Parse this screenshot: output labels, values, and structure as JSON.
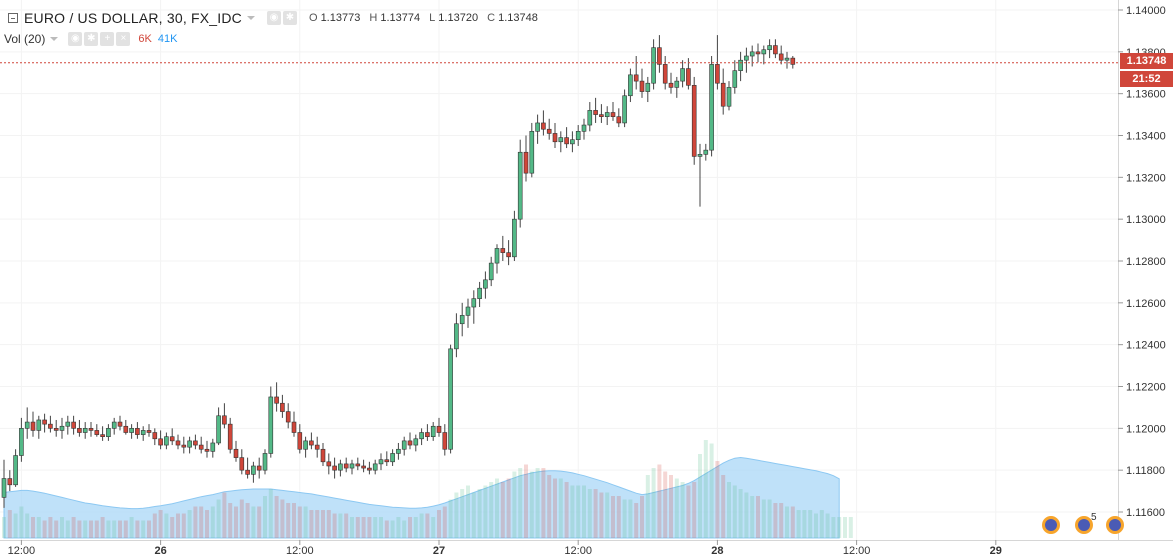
{
  "header": {
    "title": "EURO / US DOLLAR, 30, FX_IDC",
    "ohlc": {
      "o_label": "O",
      "o_value": "1.13773",
      "h_label": "H",
      "h_value": "1.13774",
      "l_label": "L",
      "l_value": "1.13720",
      "c_label": "C",
      "c_value": "1.13748"
    }
  },
  "volume_indicator": {
    "name": "Vol (20)",
    "value_a": "6K",
    "value_b": "41K"
  },
  "price_axis": {
    "ticks": [
      "1.14000",
      "1.13800",
      "1.13600",
      "1.13400",
      "1.13200",
      "1.13000",
      "1.12800",
      "1.12600",
      "1.12400",
      "1.12200",
      "1.12000",
      "1.11800",
      "1.11600"
    ],
    "last_price": "1.13748",
    "countdown": "21:52"
  },
  "time_axis": {
    "ticks": [
      "12:00",
      "26",
      "12:00",
      "27",
      "12:00",
      "28",
      "12:00",
      "29"
    ]
  },
  "badges": {
    "count": "5"
  },
  "colors": {
    "up": "#53b987",
    "down": "#d0463a",
    "volume_ma": "#a9d7f7",
    "last_line": "#d0463a"
  },
  "chart_data": {
    "type": "candlestick",
    "symbol": "EURO / US DOLLAR",
    "interval": "30",
    "y_range": [
      1.115,
      1.141
    ],
    "x_ticks": [
      {
        "label": "12:00",
        "index": 3
      },
      {
        "label": "26",
        "index": 27
      },
      {
        "label": "12:00",
        "index": 51
      },
      {
        "label": "27",
        "index": 75
      },
      {
        "label": "12:00",
        "index": 99
      },
      {
        "label": "28",
        "index": 123
      },
      {
        "label": "12:00",
        "index": 147
      },
      {
        "label": "29",
        "index": 171
      }
    ],
    "candles": [
      [
        1.1167,
        1.1185,
        1.1162,
        1.1176
      ],
      [
        1.1176,
        1.118,
        1.117,
        1.1173
      ],
      [
        1.1173,
        1.119,
        1.1172,
        1.1187
      ],
      [
        1.1187,
        1.1205,
        1.1184,
        1.12
      ],
      [
        1.12,
        1.121,
        1.1195,
        1.1203
      ],
      [
        1.1203,
        1.1208,
        1.1196,
        1.1199
      ],
      [
        1.1199,
        1.1206,
        1.1195,
        1.1204
      ],
      [
        1.1204,
        1.1207,
        1.1198,
        1.1202
      ],
      [
        1.1202,
        1.1206,
        1.1198,
        1.12
      ],
      [
        1.12,
        1.1204,
        1.1196,
        1.1199
      ],
      [
        1.1199,
        1.1205,
        1.1195,
        1.1201
      ],
      [
        1.1201,
        1.1206,
        1.1197,
        1.1203
      ],
      [
        1.1203,
        1.1206,
        1.1197,
        1.12
      ],
      [
        1.12,
        1.1204,
        1.1196,
        1.1198
      ],
      [
        1.1198,
        1.1203,
        1.1195,
        1.12
      ],
      [
        1.12,
        1.1203,
        1.1196,
        1.1199
      ],
      [
        1.1199,
        1.1202,
        1.1196,
        1.1197
      ],
      [
        1.1197,
        1.1201,
        1.1194,
        1.1196
      ],
      [
        1.1196,
        1.1202,
        1.1194,
        1.12
      ],
      [
        1.12,
        1.1205,
        1.1197,
        1.1203
      ],
      [
        1.1203,
        1.1206,
        1.1199,
        1.1201
      ],
      [
        1.1201,
        1.1204,
        1.1197,
        1.1198
      ],
      [
        1.1198,
        1.1202,
        1.1195,
        1.12
      ],
      [
        1.12,
        1.1203,
        1.1195,
        1.1197
      ],
      [
        1.1197,
        1.1201,
        1.1194,
        1.1199
      ],
      [
        1.1199,
        1.1202,
        1.1196,
        1.1198
      ],
      [
        1.1198,
        1.12,
        1.1192,
        1.1195
      ],
      [
        1.1195,
        1.1199,
        1.119,
        1.1192
      ],
      [
        1.1192,
        1.1198,
        1.119,
        1.1196
      ],
      [
        1.1196,
        1.12,
        1.1192,
        1.1194
      ],
      [
        1.1194,
        1.1197,
        1.119,
        1.1192
      ],
      [
        1.1192,
        1.1196,
        1.1188,
        1.1191
      ],
      [
        1.1191,
        1.1196,
        1.1188,
        1.1194
      ],
      [
        1.1194,
        1.1197,
        1.119,
        1.1192
      ],
      [
        1.1192,
        1.1196,
        1.1188,
        1.119
      ],
      [
        1.119,
        1.1194,
        1.1186,
        1.1189
      ],
      [
        1.1189,
        1.1195,
        1.1186,
        1.1193
      ],
      [
        1.1193,
        1.121,
        1.1192,
        1.1206
      ],
      [
        1.1206,
        1.1212,
        1.12,
        1.1202
      ],
      [
        1.1202,
        1.1205,
        1.1188,
        1.119
      ],
      [
        1.119,
        1.1194,
        1.1184,
        1.1186
      ],
      [
        1.1186,
        1.119,
        1.1178,
        1.118
      ],
      [
        1.118,
        1.1186,
        1.1176,
        1.1178
      ],
      [
        1.1178,
        1.1184,
        1.1174,
        1.1182
      ],
      [
        1.1182,
        1.1186,
        1.1176,
        1.118
      ],
      [
        1.118,
        1.119,
        1.1178,
        1.1188
      ],
      [
        1.1188,
        1.122,
        1.1186,
        1.1215
      ],
      [
        1.1215,
        1.1222,
        1.1208,
        1.1212
      ],
      [
        1.1212,
        1.1216,
        1.1205,
        1.1208
      ],
      [
        1.1208,
        1.1212,
        1.12,
        1.1203
      ],
      [
        1.1203,
        1.1208,
        1.1196,
        1.1198
      ],
      [
        1.1198,
        1.1202,
        1.1188,
        1.119
      ],
      [
        1.119,
        1.1196,
        1.1186,
        1.1194
      ],
      [
        1.1194,
        1.1198,
        1.119,
        1.1192
      ],
      [
        1.1192,
        1.1196,
        1.1186,
        1.119
      ],
      [
        1.119,
        1.1193,
        1.1182,
        1.1184
      ],
      [
        1.1184,
        1.1188,
        1.1178,
        1.1182
      ],
      [
        1.1182,
        1.1186,
        1.1176,
        1.118
      ],
      [
        1.118,
        1.1185,
        1.1177,
        1.1183
      ],
      [
        1.1183,
        1.1186,
        1.1179,
        1.1181
      ],
      [
        1.1181,
        1.1185,
        1.1178,
        1.1183
      ],
      [
        1.1183,
        1.1186,
        1.118,
        1.1182
      ],
      [
        1.1182,
        1.1185,
        1.1179,
        1.1181
      ],
      [
        1.1181,
        1.1184,
        1.1178,
        1.118
      ],
      [
        1.118,
        1.1185,
        1.1178,
        1.1183
      ],
      [
        1.1183,
        1.1188,
        1.118,
        1.1185
      ],
      [
        1.1185,
        1.1189,
        1.1182,
        1.1184
      ],
      [
        1.1184,
        1.119,
        1.1182,
        1.1188
      ],
      [
        1.1188,
        1.1193,
        1.1185,
        1.119
      ],
      [
        1.119,
        1.1196,
        1.1187,
        1.1194
      ],
      [
        1.1194,
        1.1198,
        1.119,
        1.1192
      ],
      [
        1.1192,
        1.1197,
        1.1189,
        1.1195
      ],
      [
        1.1195,
        1.12,
        1.1192,
        1.1198
      ],
      [
        1.1198,
        1.1202,
        1.1194,
        1.1196
      ],
      [
        1.1196,
        1.1203,
        1.1194,
        1.1201
      ],
      [
        1.1201,
        1.1205,
        1.1196,
        1.1198
      ],
      [
        1.1198,
        1.1202,
        1.1187,
        1.119
      ],
      [
        1.119,
        1.124,
        1.1188,
        1.1238
      ],
      [
        1.1238,
        1.1255,
        1.1234,
        1.125
      ],
      [
        1.125,
        1.126,
        1.1244,
        1.1254
      ],
      [
        1.1254,
        1.1262,
        1.1248,
        1.1258
      ],
      [
        1.1258,
        1.1266,
        1.125,
        1.1262
      ],
      [
        1.1262,
        1.127,
        1.1258,
        1.1267
      ],
      [
        1.1267,
        1.1275,
        1.1262,
        1.1271
      ],
      [
        1.1271,
        1.1282,
        1.1268,
        1.1279
      ],
      [
        1.1279,
        1.1288,
        1.1274,
        1.1286
      ],
      [
        1.1286,
        1.1292,
        1.128,
        1.1284
      ],
      [
        1.1284,
        1.129,
        1.1278,
        1.1282
      ],
      [
        1.1282,
        1.1304,
        1.128,
        1.13
      ],
      [
        1.13,
        1.1338,
        1.1296,
        1.1332
      ],
      [
        1.1332,
        1.134,
        1.1318,
        1.1322
      ],
      [
        1.1322,
        1.1346,
        1.132,
        1.1342
      ],
      [
        1.1342,
        1.135,
        1.1336,
        1.1346
      ],
      [
        1.1346,
        1.1352,
        1.134,
        1.1343
      ],
      [
        1.1343,
        1.1348,
        1.1338,
        1.1341
      ],
      [
        1.1341,
        1.1346,
        1.1334,
        1.1337
      ],
      [
        1.1337,
        1.1342,
        1.1332,
        1.1339
      ],
      [
        1.1339,
        1.1344,
        1.1334,
        1.1336
      ],
      [
        1.1336,
        1.1342,
        1.1332,
        1.1338
      ],
      [
        1.1338,
        1.1345,
        1.1335,
        1.1342
      ],
      [
        1.1342,
        1.1348,
        1.1338,
        1.1345
      ],
      [
        1.1345,
        1.1356,
        1.1342,
        1.1352
      ],
      [
        1.1352,
        1.1358,
        1.1346,
        1.135
      ],
      [
        1.135,
        1.1355,
        1.1346,
        1.1349
      ],
      [
        1.1349,
        1.1354,
        1.1345,
        1.1351
      ],
      [
        1.1351,
        1.1356,
        1.1347,
        1.1349
      ],
      [
        1.1349,
        1.1353,
        1.1344,
        1.1346
      ],
      [
        1.1346,
        1.1362,
        1.1344,
        1.1359
      ],
      [
        1.1359,
        1.1372,
        1.1356,
        1.1369
      ],
      [
        1.1369,
        1.1378,
        1.1362,
        1.1366
      ],
      [
        1.1366,
        1.1372,
        1.1358,
        1.1361
      ],
      [
        1.1361,
        1.1368,
        1.1356,
        1.1365
      ],
      [
        1.1365,
        1.1386,
        1.1362,
        1.1382
      ],
      [
        1.1382,
        1.1388,
        1.137,
        1.1374
      ],
      [
        1.1374,
        1.1378,
        1.1362,
        1.1365
      ],
      [
        1.1365,
        1.137,
        1.136,
        1.1363
      ],
      [
        1.1363,
        1.1368,
        1.1358,
        1.1366
      ],
      [
        1.1366,
        1.1376,
        1.1363,
        1.1372
      ],
      [
        1.1372,
        1.1377,
        1.1362,
        1.1364
      ],
      [
        1.1364,
        1.1368,
        1.1326,
        1.133
      ],
      [
        1.133,
        1.1336,
        1.1306,
        1.1331
      ],
      [
        1.1331,
        1.1336,
        1.1328,
        1.1333
      ],
      [
        1.1333,
        1.1378,
        1.133,
        1.1374
      ],
      [
        1.1374,
        1.1388,
        1.1362,
        1.1365
      ],
      [
        1.1365,
        1.1372,
        1.135,
        1.1354
      ],
      [
        1.1354,
        1.1366,
        1.1352,
        1.1363
      ],
      [
        1.1363,
        1.1376,
        1.136,
        1.1371
      ],
      [
        1.1371,
        1.138,
        1.1366,
        1.1376
      ],
      [
        1.1376,
        1.1382,
        1.137,
        1.1378
      ],
      [
        1.1378,
        1.1383,
        1.1373,
        1.138
      ],
      [
        1.138,
        1.1384,
        1.1375,
        1.1379
      ],
      [
        1.1379,
        1.1383,
        1.1374,
        1.1381
      ],
      [
        1.1381,
        1.1386,
        1.1377,
        1.1383
      ],
      [
        1.1383,
        1.1386,
        1.1377,
        1.1379
      ],
      [
        1.1379,
        1.1383,
        1.1374,
        1.1376
      ],
      [
        1.1376,
        1.138,
        1.1372,
        1.1377
      ],
      [
        1.1377,
        1.1378,
        1.1372,
        1.1374
      ]
    ],
    "volume": [
      6,
      8,
      7,
      9,
      7,
      6,
      6,
      5,
      6,
      5,
      6,
      5,
      6,
      5,
      5,
      5,
      5,
      6,
      5,
      5,
      5,
      5,
      6,
      5,
      5,
      5,
      7,
      8,
      7,
      6,
      7,
      7,
      8,
      9,
      9,
      8,
      9,
      11,
      13,
      10,
      9,
      11,
      10,
      9,
      9,
      12,
      14,
      12,
      11,
      10,
      10,
      9,
      9,
      8,
      8,
      8,
      8,
      7,
      7,
      7,
      6,
      6,
      6,
      6,
      6,
      6,
      5,
      5,
      6,
      5,
      6,
      6,
      7,
      7,
      6,
      8,
      9,
      11,
      13,
      14,
      15,
      13,
      14,
      15,
      16,
      17,
      16,
      17,
      19,
      20,
      21,
      19,
      20,
      20,
      18,
      17,
      17,
      16,
      15,
      15,
      15,
      14,
      14,
      13,
      13,
      12,
      12,
      11,
      11,
      10,
      12,
      18,
      20,
      21,
      19,
      18,
      17,
      16,
      15,
      16,
      24,
      28,
      27,
      22,
      18,
      16,
      15,
      14,
      13,
      12,
      12,
      11,
      11,
      10,
      10,
      9,
      9,
      8,
      8,
      8,
      7,
      8,
      7,
      6,
      6,
      6,
      6
    ],
    "volume_ma_20": [
      13,
      13.2,
      13.4,
      13.6,
      13.6,
      13.4,
      13.1,
      12.8,
      12.4,
      12,
      11.6,
      11.2,
      10.8,
      10.4,
      10.0,
      9.8,
      9.5,
      9.2,
      9.0,
      8.8,
      8.6,
      8.5,
      8.4,
      8.4,
      8.5,
      8.7,
      9.0,
      9.2,
      9.5,
      9.8,
      10.2,
      10.6,
      11.0,
      11.4,
      11.8,
      12.1,
      12.4,
      12.8,
      13.2,
      13.4,
      13.6,
      13.8,
      13.9,
      14.0,
      14.0,
      14.0,
      14.0,
      13.8,
      13.6,
      13.4,
      13.2,
      13.0,
      12.8,
      12.6,
      12.3,
      12.0,
      11.7,
      11.4,
      11.1,
      10.8,
      10.5,
      10.2,
      9.9,
      9.6,
      9.4,
      9.2,
      9.0,
      8.8,
      8.7,
      8.6,
      8.5,
      8.5,
      8.6,
      8.8,
      9.1,
      9.5,
      10.0,
      10.6,
      11.2,
      11.8,
      12.4,
      13.0,
      13.6,
      14.2,
      14.8,
      15.4,
      16.0,
      16.6,
      17.2,
      17.8,
      18.2,
      18.6,
      18.9,
      19.1,
      19.2,
      19.2,
      19.1,
      18.9,
      18.6,
      18.2,
      17.8,
      17.3,
      16.8,
      16.3,
      15.8,
      15.2,
      14.6,
      14.0,
      13.4,
      12.8,
      12.4,
      12.6,
      13.0,
      13.4,
      13.8,
      14.2,
      14.6,
      15.0,
      15.6,
      16.4,
      17.4,
      18.4,
      19.4,
      20.4,
      21.4,
      22.2,
      22.8,
      23.0,
      22.8,
      22.5,
      22.2,
      21.9,
      21.6,
      21.3,
      21.0,
      20.7,
      20.4,
      20.1,
      19.8,
      19.5,
      19.2,
      18.8,
      18.4,
      17.8,
      16.9
    ],
    "volume_scale_max": 40
  }
}
